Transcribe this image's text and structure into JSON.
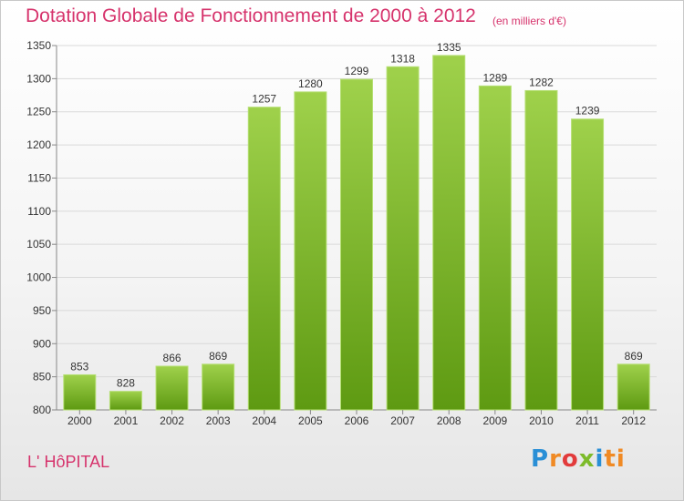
{
  "header": {
    "title": "Dotation Globale de Fonctionnement de 2000 à 2012",
    "subtitle": "(en milliers d'€)"
  },
  "footer": {
    "commune": "L' HôPITAL",
    "brand_letters": [
      "P",
      "r",
      "o",
      "x",
      "i",
      "ti"
    ]
  },
  "colors": {
    "title": "#d6336c",
    "bar_top": "#9fd14b",
    "bar_bottom": "#5e9a12",
    "grid": "#d9d9d9"
  },
  "chart_data": {
    "type": "bar",
    "title": "Dotation Globale de Fonctionnement de 2000 à 2012",
    "subtitle": "(en milliers d'€)",
    "xlabel": "",
    "ylabel": "",
    "categories": [
      "2000",
      "2001",
      "2002",
      "2003",
      "2004",
      "2005",
      "2006",
      "2007",
      "2008",
      "2009",
      "2010",
      "2011",
      "2012"
    ],
    "values": [
      853,
      828,
      866,
      869,
      1257,
      1280,
      1299,
      1318,
      1335,
      1289,
      1282,
      1239,
      869
    ],
    "ylim": [
      800,
      1350
    ],
    "yticks": [
      800,
      850,
      900,
      950,
      1000,
      1050,
      1100,
      1150,
      1200,
      1250,
      1300,
      1350
    ],
    "grid": true,
    "data_labels": true
  }
}
